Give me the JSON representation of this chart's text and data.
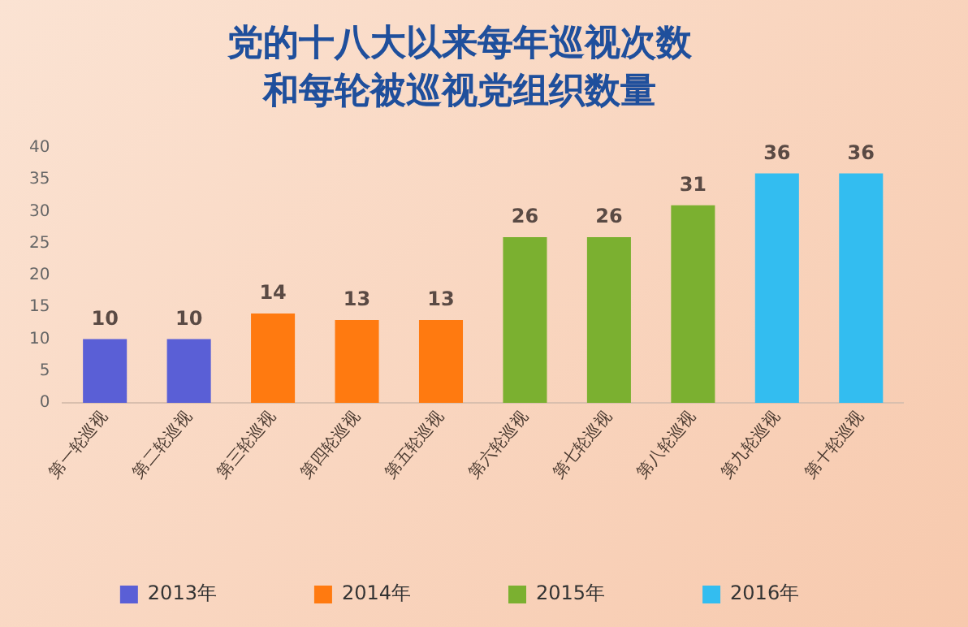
{
  "chart_data": {
    "type": "bar",
    "title": "党的十八大以来每年巡视次数",
    "subtitle": "和每轮被巡视党组织数量",
    "categories": [
      "第一轮巡视",
      "第二轮巡视",
      "第三轮巡视",
      "第四轮巡视",
      "第五轮巡视",
      "第六轮巡视",
      "第七轮巡视",
      "第八轮巡视",
      "第九轮巡视",
      "第十轮巡视"
    ],
    "series": [
      {
        "name": "2013年",
        "color": "#5a5fd6",
        "values": [
          10,
          10,
          null,
          null,
          null,
          null,
          null,
          null,
          null,
          null
        ]
      },
      {
        "name": "2014年",
        "color": "#ff7a10",
        "values": [
          null,
          null,
          14,
          13,
          13,
          null,
          null,
          null,
          null,
          null
        ]
      },
      {
        "name": "2015年",
        "color": "#7bb030",
        "values": [
          null,
          null,
          null,
          null,
          null,
          26,
          26,
          31,
          null,
          null
        ]
      },
      {
        "name": "2016年",
        "color": "#33bdf0",
        "values": [
          null,
          null,
          null,
          null,
          null,
          null,
          null,
          null,
          36,
          36
        ]
      }
    ],
    "ylim": [
      0,
      40
    ],
    "yticks": [
      0,
      5,
      10,
      15,
      20,
      25,
      30,
      35,
      40
    ],
    "grid": false,
    "legend": "bottom",
    "data_labels": true
  }
}
